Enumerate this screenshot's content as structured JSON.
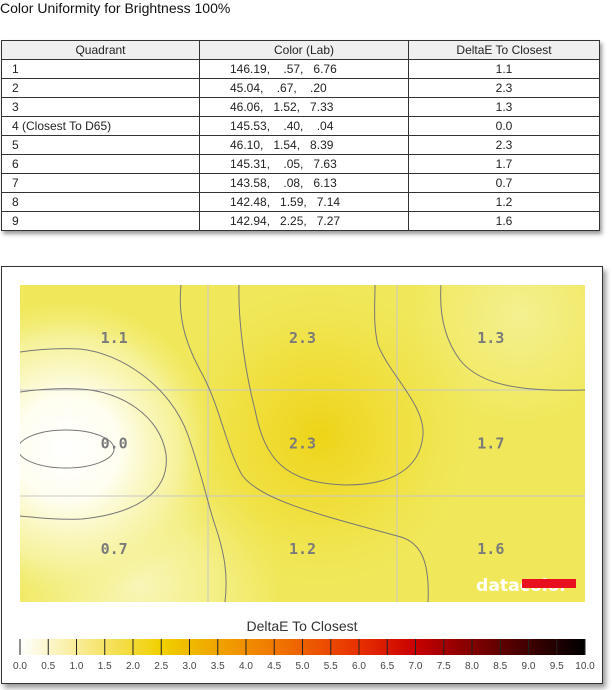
{
  "title": "Color Uniformity for Brightness 100%",
  "table": {
    "headers": [
      "Quadrant",
      "Color (Lab)",
      "DeltaE To Closest"
    ],
    "rows": [
      [
        "1",
        "146.19,    .57,   6.76",
        "1.1"
      ],
      [
        "2",
        "45.04,    .67,    .20",
        "2.3"
      ],
      [
        "3",
        "46.06,   1.52,   7.33",
        "1.3"
      ],
      [
        "4 (Closest To D65)",
        "145.53,    .40,    .04",
        "0.0"
      ],
      [
        "5",
        "46.10,   1.54,   8.39",
        "2.3"
      ],
      [
        "6",
        "145.31,    .05,   7.63",
        "1.7"
      ],
      [
        "7",
        "143.58,    .08,   6.13",
        "0.7"
      ],
      [
        "8",
        "142.48,   1.59,   7.14",
        "1.2"
      ],
      [
        "9",
        "142.94,   2.25,   7.27",
        "1.6"
      ]
    ]
  },
  "chart_data": {
    "type": "heatmap",
    "grid": [
      [
        1.1,
        2.3,
        1.3
      ],
      [
        0.0,
        2.3,
        1.7
      ],
      [
        0.7,
        1.2,
        1.6
      ]
    ],
    "labels": [
      [
        "1.1",
        "2.3",
        "1.3"
      ],
      [
        "0.0",
        "2.3",
        "1.7"
      ],
      [
        "0.7",
        "1.2",
        "1.6"
      ]
    ],
    "colorbar_title": "DeltaE To Closest",
    "colorbar_range": [
      0,
      10
    ],
    "colorbar_ticks": [
      "0.0",
      "0.5",
      "1.0",
      "1.5",
      "2.0",
      "2.5",
      "3.0",
      "3.5",
      "4.0",
      "4.5",
      "5.0",
      "5.5",
      "6.0",
      "6.5",
      "7.0",
      "7.5",
      "8.0",
      "8.5",
      "9.0",
      "9.5",
      "10.0"
    ],
    "colormap": [
      [
        0,
        "#ffffff"
      ],
      [
        2.5,
        "#f0d000"
      ],
      [
        4.5,
        "#f07800"
      ],
      [
        6,
        "#e83000"
      ],
      [
        7,
        "#c80000"
      ],
      [
        8.5,
        "#600000"
      ],
      [
        10,
        "#000000"
      ]
    ],
    "watermark": "datacolor"
  }
}
